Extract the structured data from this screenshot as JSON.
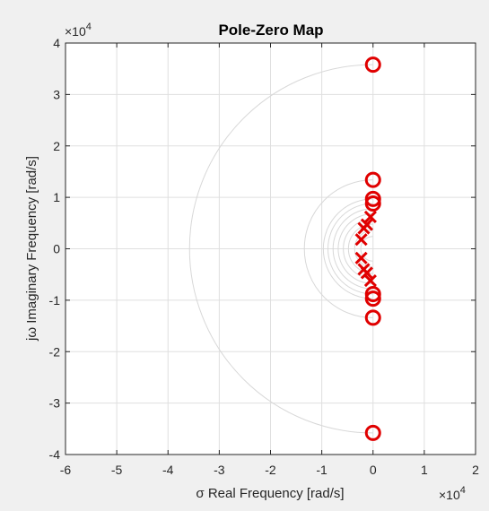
{
  "chart_data": {
    "type": "scatter",
    "title": "Pole-Zero Map",
    "xlabel": "σ Real Frequency [rad/s]",
    "ylabel": "jω Imaginary Frequency [rad/s]",
    "x_multiplier": "×10",
    "x_exponent": "4",
    "y_multiplier": "×10",
    "y_exponent": "4",
    "xlim": [
      -6,
      2
    ],
    "ylim": [
      -4,
      4
    ],
    "x_ticks": [
      -6,
      -5,
      -4,
      -3,
      -2,
      -1,
      0,
      1,
      2
    ],
    "y_ticks": [
      -4,
      -3,
      -2,
      -1,
      0,
      1,
      2,
      3,
      4
    ],
    "x_tick_labels": [
      "-6",
      "-5",
      "-4",
      "-3",
      "-2",
      "-1",
      "0",
      "1",
      "2"
    ],
    "y_tick_labels": [
      "-4",
      "-3",
      "-2",
      "-1",
      "0",
      "1",
      "2",
      "3",
      "4"
    ],
    "grid": true,
    "series": [
      {
        "marker": "x",
        "points": [
          {
            "x": -0.05,
            "y": 0.62
          },
          {
            "x": -0.12,
            "y": 0.47
          },
          {
            "x": -0.18,
            "y": 0.4
          },
          {
            "x": -0.23,
            "y": 0.18
          },
          {
            "x": -0.23,
            "y": -0.18
          },
          {
            "x": -0.18,
            "y": -0.4
          },
          {
            "x": -0.12,
            "y": -0.47
          },
          {
            "x": -0.05,
            "y": -0.62
          }
        ]
      },
      {
        "marker": "o",
        "points": [
          {
            "x": 0,
            "y": 3.58
          },
          {
            "x": 0,
            "y": 1.34
          },
          {
            "x": 0,
            "y": 0.97
          },
          {
            "x": 0,
            "y": 0.88
          },
          {
            "x": 0,
            "y": -0.88
          },
          {
            "x": 0,
            "y": -0.97
          },
          {
            "x": 0,
            "y": -1.34
          },
          {
            "x": 0,
            "y": -3.58
          }
        ]
      }
    ],
    "constant_wn_arcs": [
      3.58,
      1.34,
      0.97,
      0.88,
      0.78,
      0.68,
      0.58,
      0.48,
      0.36,
      0.24
    ],
    "colors": {
      "marker": "#e00000",
      "grid": "#dfdfdf",
      "arc": "#d8d8d8",
      "axes_background": "#ffffff",
      "figure_background": "#f0f0f0"
    }
  }
}
